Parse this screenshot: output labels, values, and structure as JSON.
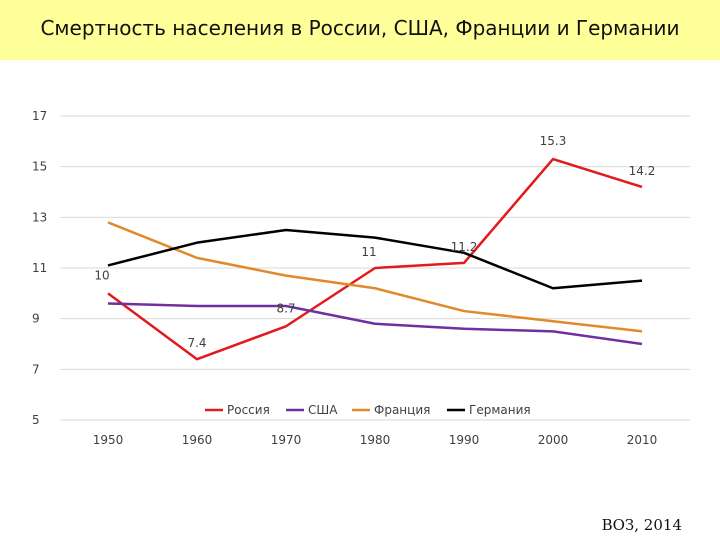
{
  "title": "Смертность населения в России, США, Франции и Германии",
  "source": "ВОЗ, 2014",
  "colors": {
    "band": "#ffff99",
    "grid": "#d9d9d9",
    "russia": "#e31a1c",
    "usa": "#7030a0",
    "france": "#e08a2c",
    "germany": "#000000"
  },
  "chart_data": {
    "type": "line",
    "title": "Смертность населения в России, США, Франции и Германии",
    "x": [
      "1950",
      "1960",
      "1970",
      "1980",
      "1990",
      "2000",
      "2010"
    ],
    "ylim": [
      5,
      17
    ],
    "yticks": [
      5,
      7,
      9,
      11,
      13,
      15,
      17
    ],
    "grid": true,
    "legend_position": "bottom",
    "series": [
      {
        "name": "Россия",
        "color": "#e31a1c",
        "values": [
          10,
          7.4,
          8.7,
          11,
          11.2,
          15.3,
          14.2
        ],
        "data_labels": [
          "10",
          "7.4",
          "8.7",
          "11",
          "11.2",
          "15.3",
          "14.2"
        ]
      },
      {
        "name": "США",
        "color": "#7030a0",
        "values": [
          9.6,
          9.5,
          9.5,
          8.8,
          8.6,
          8.5,
          8.0
        ]
      },
      {
        "name": "Франция",
        "color": "#e08a2c",
        "values": [
          12.8,
          11.4,
          10.7,
          10.2,
          9.3,
          8.9,
          8.5
        ]
      },
      {
        "name": "Германия",
        "color": "#000000",
        "values": [
          11.1,
          12.0,
          12.5,
          12.2,
          11.6,
          10.2,
          10.5
        ]
      }
    ]
  }
}
